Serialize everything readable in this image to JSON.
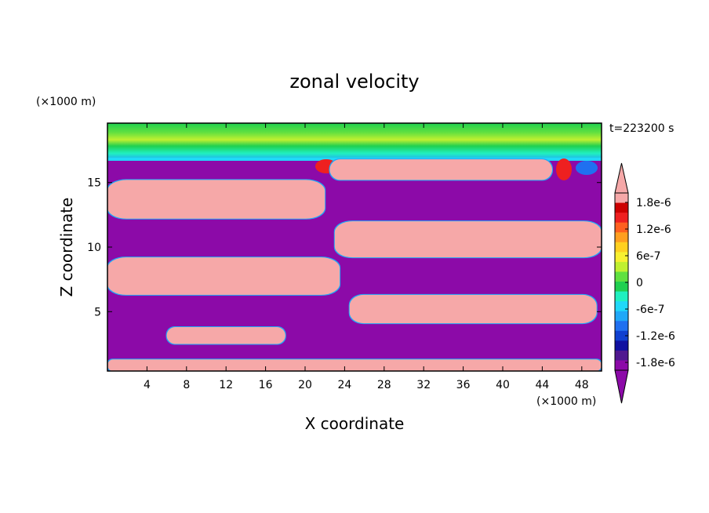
{
  "chart_data": {
    "type": "heatmap",
    "title": "zonal velocity",
    "xlabel": "X coordinate",
    "ylabel": "Z coordinate",
    "x_unit": "(×1000 m)",
    "y_unit": "(×1000 m)",
    "time_label": "t=223200 s",
    "xlim": [
      0,
      50
    ],
    "ylim": [
      0.4,
      19.6
    ],
    "x_ticks": [
      4,
      8,
      12,
      16,
      20,
      24,
      28,
      32,
      36,
      40,
      44,
      48
    ],
    "y_ticks": [
      5,
      10,
      15
    ],
    "colorbar": {
      "labels": [
        "1.8e-6",
        "1.2e-6",
        "6e-7",
        "0",
        "-6e-7",
        "-1.2e-6",
        "-1.8e-6"
      ],
      "colors": [
        "#F6A8A8",
        "#CC0000",
        "#EE2020",
        "#FF6020",
        "#FF9F20",
        "#FFD020",
        "#F8F030",
        "#C0F030",
        "#60E040",
        "#20D050",
        "#20F0C0",
        "#20D8F8",
        "#20A8F8",
        "#2070F0",
        "#1040D0",
        "#1010A0",
        "#501890",
        "#8C0AA8"
      ],
      "min": "-1.8e-6",
      "max": "1.8e-6"
    },
    "background_color": "#8C0AA8",
    "positive_color": "#F6A8A8",
    "regions": [
      {
        "value": "negative",
        "x": [
          0,
          50
        ],
        "z": [
          0.4,
          17
        ]
      },
      {
        "value": "positive",
        "x": [
          22.5,
          45
        ],
        "z": [
          15.2,
          16.8
        ]
      },
      {
        "value": "positive",
        "x": [
          0,
          22
        ],
        "z": [
          12.2,
          15.2
        ]
      },
      {
        "value": "positive",
        "x": [
          23,
          50
        ],
        "z": [
          9.2,
          12
        ]
      },
      {
        "value": "positive",
        "x": [
          0,
          23.5
        ],
        "z": [
          6.3,
          9.2
        ]
      },
      {
        "value": "positive",
        "x": [
          24.5,
          49.5
        ],
        "z": [
          4.1,
          6.3
        ]
      },
      {
        "value": "positive",
        "x": [
          6,
          18
        ],
        "z": [
          2.5,
          3.8
        ]
      },
      {
        "value": "positive",
        "x": [
          0,
          50
        ],
        "z": [
          0.4,
          1.3
        ]
      },
      {
        "value": "near-zero",
        "x": [
          0,
          50
        ],
        "z": [
          17,
          19.6
        ]
      }
    ]
  }
}
